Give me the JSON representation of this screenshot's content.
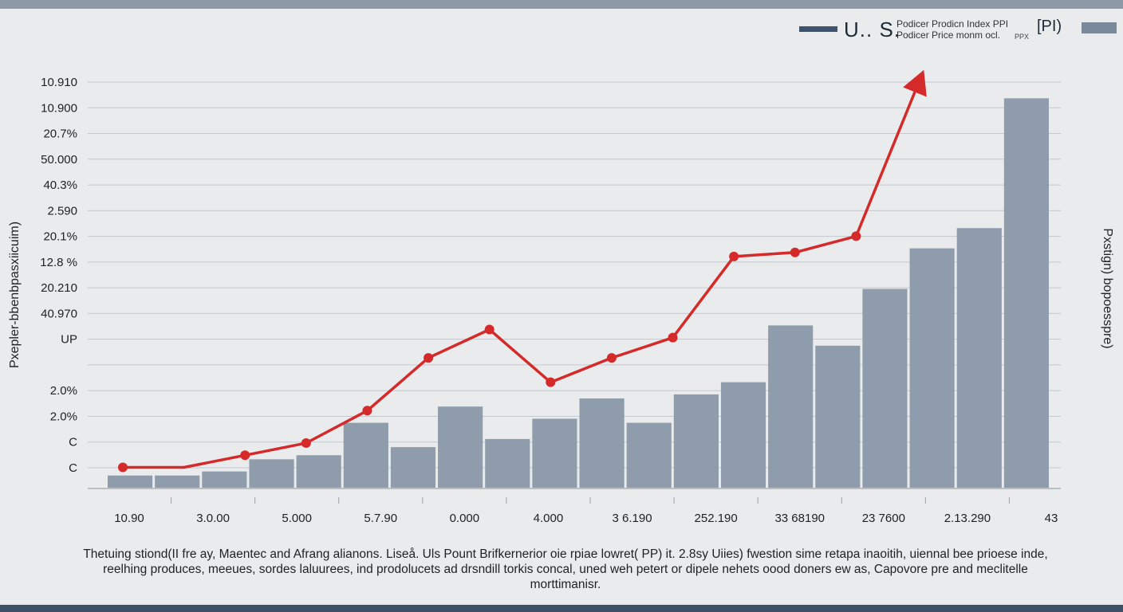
{
  "chart_data": {
    "type": "bar",
    "title": "U.. S.",
    "legend": {
      "line1": "Podicer Prodicn Index PPI",
      "line2": "Podicer Price monm ocl.",
      "pi": "[PI)",
      "sub": "PPX",
      "position": "top-right"
    },
    "ylabel_left": "Pxepler-bbenbpasxiicuim)",
    "ylabel_right": "Pxstign) bopoesspre)",
    "yticks": [
      "10.910",
      "10.900",
      "20.7%",
      "50.000",
      "40.3%",
      "2.590",
      "20.1%",
      "12.8 %",
      "20.210",
      "40.970",
      "UP",
      "",
      "2.0%",
      "2.0%",
      "C",
      "C"
    ],
    "xticks": [
      "10.90",
      "3.0.00",
      "5.000",
      "5.7.90",
      "0.000",
      "4.000",
      "3 6.190",
      "252.190",
      "33 68190",
      "23 7600",
      "2.13.290",
      "43"
    ],
    "grid": true,
    "ylim": [
      0,
      100
    ],
    "series": [
      {
        "name": "Podicer Prodicn Index PPI",
        "kind": "bar",
        "values": [
          3,
          3,
          4,
          7,
          8,
          16,
          10,
          20,
          12,
          17,
          22,
          16,
          23,
          26,
          40,
          35,
          49,
          59,
          64,
          96
        ]
      },
      {
        "name": "Podicer Price monm ocl.",
        "kind": "line",
        "values": [
          5,
          5,
          8,
          11,
          19,
          32,
          39,
          26,
          32,
          37,
          57,
          58,
          62,
          99
        ]
      }
    ]
  },
  "colors": {
    "bar_dark": "#3e5270",
    "bar_mid": "#6b7b8d",
    "bar_light": "#8e9cab",
    "line": "#d42a2a"
  },
  "caption": "Thetuing stiond(II fre ay, Maentec and Afrang alianons. Liseå. Uls Pount Brifkernerior oie rpiae lowret( PP) it. 2.8sy Uiies) fwestion sime retapa inaoitih, uiennal bee prioese inde, reelhing produces, meeues, sordes laluurees, ind prodolucets ad drsndill torkis concal, uned weh petert or dipele nehets oood doners ew as, Capovore pre and meclitelle morttimanisr."
}
